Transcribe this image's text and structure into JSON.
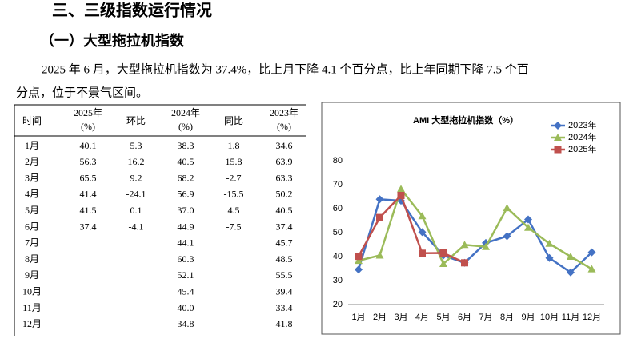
{
  "heading": "三、三级指数运行情况",
  "subheading": "（一）大型拖拉机指数",
  "paragraph": [
    "2025 年 6 月，大型拖拉机指数为 37.4%，比上月下降 4.1 个百分点，比上年同期下降 7.5 个百",
    "分点，位于不景气区间。"
  ],
  "table": {
    "header": [
      [
        "时间"
      ],
      [
        "2025年",
        "(%)"
      ],
      [
        "环比"
      ],
      [
        "2024年",
        "(%)"
      ],
      [
        "同比"
      ],
      [
        "2023年",
        "(%)"
      ]
    ],
    "rows": [
      [
        "1月",
        "40.1",
        "5.3",
        "38.3",
        "1.8",
        "34.6"
      ],
      [
        "2月",
        "56.3",
        "16.2",
        "40.5",
        "15.8",
        "63.9"
      ],
      [
        "3月",
        "65.5",
        "9.2",
        "68.2",
        "-2.7",
        "63.3"
      ],
      [
        "4月",
        "41.4",
        "-24.1",
        "56.9",
        "-15.5",
        "50.2"
      ],
      [
        "5月",
        "41.5",
        "0.1",
        "37.0",
        "4.5",
        "40.5"
      ],
      [
        "6月",
        "37.4",
        "-4.1",
        "44.9",
        "-7.5",
        "37.4"
      ],
      [
        "7月",
        null,
        null,
        "44.1",
        null,
        "45.7"
      ],
      [
        "8月",
        null,
        null,
        "60.3",
        null,
        "48.5"
      ],
      [
        "9月",
        null,
        null,
        "52.1",
        null,
        "55.5"
      ],
      [
        "10月",
        null,
        null,
        "45.4",
        null,
        "39.4"
      ],
      [
        "11月",
        null,
        null,
        "40.0",
        null,
        "33.4"
      ],
      [
        "12月",
        null,
        null,
        "34.8",
        null,
        "41.8"
      ]
    ]
  },
  "chart_data": {
    "type": "line",
    "title": "AMI 大型拖拉机指数（%）",
    "categories": [
      "1月",
      "2月",
      "3月",
      "4月",
      "5月",
      "6月",
      "7月",
      "8月",
      "9月",
      "10月",
      "11月",
      "12月"
    ],
    "series": [
      {
        "name": "2023年",
        "color": "#4472c4",
        "marker": "diamond",
        "values": [
          34.6,
          63.9,
          63.3,
          50.2,
          40.5,
          37.4,
          45.7,
          48.5,
          55.5,
          39.4,
          33.4,
          41.8
        ]
      },
      {
        "name": "2024年",
        "color": "#9bbb59",
        "marker": "triangle",
        "values": [
          38.3,
          40.5,
          68.2,
          56.9,
          37.0,
          44.9,
          44.1,
          60.3,
          52.1,
          45.4,
          40.0,
          34.8
        ]
      },
      {
        "name": "2025年",
        "color": "#c0504d",
        "marker": "square",
        "values": [
          40.1,
          56.3,
          65.5,
          41.4,
          41.5,
          37.4,
          null,
          null,
          null,
          null,
          null,
          null
        ]
      }
    ],
    "ylim": [
      20,
      80
    ],
    "yticks": [
      20,
      30,
      40,
      50,
      60,
      70,
      80
    ],
    "grid": false,
    "legend": "top-right"
  }
}
